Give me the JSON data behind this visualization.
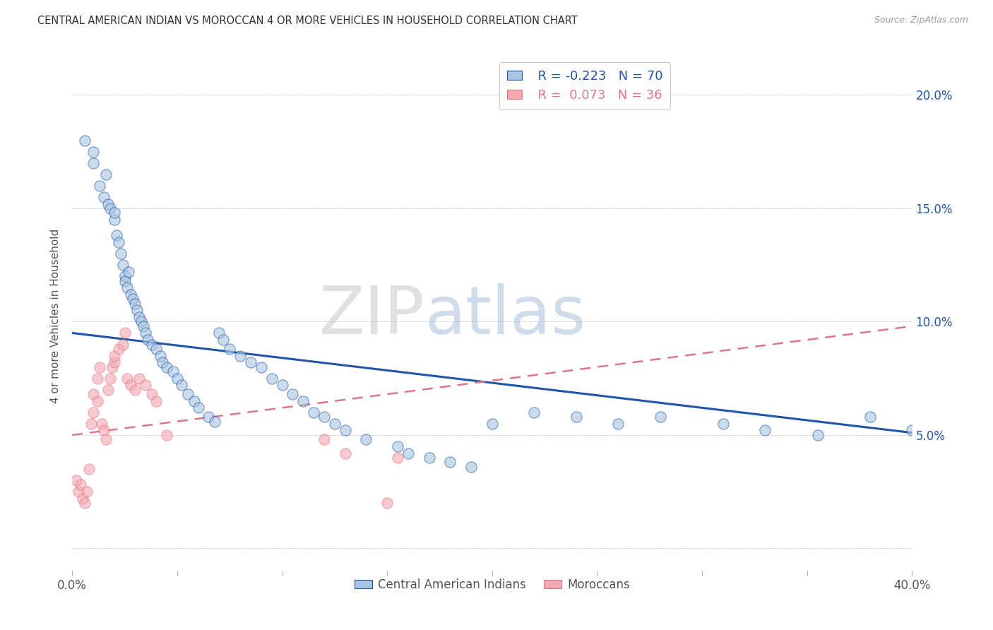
{
  "title": "CENTRAL AMERICAN INDIAN VS MOROCCAN 4 OR MORE VEHICLES IN HOUSEHOLD CORRELATION CHART",
  "source": "Source: ZipAtlas.com",
  "ylabel": "4 or more Vehicles in Household",
  "xlim": [
    0.0,
    0.4
  ],
  "ylim": [
    -0.01,
    0.215
  ],
  "legend_blue_r": "-0.223",
  "legend_blue_n": "70",
  "legend_pink_r": "0.073",
  "legend_pink_n": "36",
  "blue_color": "#A8C4E0",
  "pink_color": "#F4A8B0",
  "blue_line_color": "#2255AA",
  "pink_line_color": "#DD7788",
  "watermark_zip": "ZIP",
  "watermark_atlas": "atlas",
  "blue_line_start_y": 0.095,
  "blue_line_end_y": 0.051,
  "pink_line_start_y": 0.05,
  "pink_line_end_y": 0.098,
  "blue_scatter_x": [
    0.006,
    0.01,
    0.01,
    0.013,
    0.015,
    0.016,
    0.017,
    0.018,
    0.02,
    0.02,
    0.021,
    0.022,
    0.023,
    0.024,
    0.025,
    0.025,
    0.026,
    0.027,
    0.028,
    0.029,
    0.03,
    0.031,
    0.032,
    0.033,
    0.034,
    0.035,
    0.036,
    0.038,
    0.04,
    0.042,
    0.043,
    0.045,
    0.048,
    0.05,
    0.052,
    0.055,
    0.058,
    0.06,
    0.065,
    0.068,
    0.07,
    0.072,
    0.075,
    0.08,
    0.085,
    0.09,
    0.095,
    0.1,
    0.105,
    0.11,
    0.115,
    0.12,
    0.125,
    0.13,
    0.14,
    0.155,
    0.16,
    0.17,
    0.18,
    0.19,
    0.2,
    0.22,
    0.24,
    0.26,
    0.28,
    0.31,
    0.33,
    0.355,
    0.38,
    0.4
  ],
  "blue_scatter_y": [
    0.18,
    0.175,
    0.17,
    0.16,
    0.155,
    0.165,
    0.152,
    0.15,
    0.145,
    0.148,
    0.138,
    0.135,
    0.13,
    0.125,
    0.12,
    0.118,
    0.115,
    0.122,
    0.112,
    0.11,
    0.108,
    0.105,
    0.102,
    0.1,
    0.098,
    0.095,
    0.092,
    0.09,
    0.088,
    0.085,
    0.082,
    0.08,
    0.078,
    0.075,
    0.072,
    0.068,
    0.065,
    0.062,
    0.058,
    0.056,
    0.095,
    0.092,
    0.088,
    0.085,
    0.082,
    0.08,
    0.075,
    0.072,
    0.068,
    0.065,
    0.06,
    0.058,
    0.055,
    0.052,
    0.048,
    0.045,
    0.042,
    0.04,
    0.038,
    0.036,
    0.055,
    0.06,
    0.058,
    0.055,
    0.058,
    0.055,
    0.052,
    0.05,
    0.058,
    0.052
  ],
  "pink_scatter_x": [
    0.002,
    0.003,
    0.004,
    0.005,
    0.006,
    0.007,
    0.008,
    0.009,
    0.01,
    0.01,
    0.012,
    0.012,
    0.013,
    0.014,
    0.015,
    0.016,
    0.017,
    0.018,
    0.019,
    0.02,
    0.02,
    0.022,
    0.024,
    0.025,
    0.026,
    0.028,
    0.03,
    0.032,
    0.035,
    0.038,
    0.04,
    0.045,
    0.12,
    0.13,
    0.15,
    0.155
  ],
  "pink_scatter_y": [
    0.03,
    0.025,
    0.028,
    0.022,
    0.02,
    0.025,
    0.035,
    0.055,
    0.06,
    0.068,
    0.065,
    0.075,
    0.08,
    0.055,
    0.052,
    0.048,
    0.07,
    0.075,
    0.08,
    0.082,
    0.085,
    0.088,
    0.09,
    0.095,
    0.075,
    0.072,
    0.07,
    0.075,
    0.072,
    0.068,
    0.065,
    0.05,
    0.048,
    0.042,
    0.02,
    0.04
  ]
}
